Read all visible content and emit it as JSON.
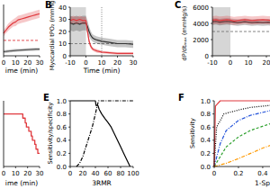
{
  "chart_data": [
    {
      "type": "line",
      "x": [
        0,
        2,
        4,
        6,
        8,
        10,
        12,
        15,
        18,
        21,
        24,
        27,
        30
      ],
      "series": [
        {
          "color": "#e0393e",
          "values": [
            22,
            25,
            28,
            30,
            32,
            33,
            35,
            36,
            37,
            38,
            39,
            40,
            41
          ],
          "errors": [
            3,
            3,
            3.5,
            3.5,
            3.5,
            4,
            4,
            4,
            4,
            4,
            4,
            4,
            4
          ]
        },
        {
          "color": "#555555",
          "values": [
            4,
            4.2,
            4.5,
            4.8,
            5,
            5.2,
            5.4,
            5.6,
            5.8,
            6,
            6.2,
            6.4,
            6.5
          ],
          "errors": [
            1.5,
            1.5,
            1.5,
            1.5,
            1.5,
            1.5,
            1.5,
            1.5,
            1.5,
            1.5,
            1.5,
            1.5,
            1.5
          ]
        }
      ],
      "xlim": [
        0,
        30
      ],
      "ylim": [
        0,
        50
      ],
      "xticks": [
        0,
        10,
        20,
        30
      ],
      "xlabel": "ime (min)",
      "hline": 15,
      "color": "#e0393e",
      "tick_labels": "x"
    },
    {
      "type": "line",
      "title": "B",
      "x": [
        -10,
        -8,
        -6,
        -4,
        -2,
        0,
        1,
        2,
        3,
        4,
        5,
        7,
        10,
        15,
        20,
        25,
        30
      ],
      "series": [
        {
          "color": "#333333",
          "values": [
            27,
            26,
            27,
            26,
            27,
            27,
            24,
            20,
            17,
            15,
            14,
            13,
            12,
            11,
            10,
            10,
            9.5
          ],
          "errors": [
            6,
            6,
            6,
            6,
            6,
            6,
            5,
            4,
            3.5,
            3,
            3,
            3,
            3,
            3,
            3,
            3,
            3
          ]
        },
        {
          "color": "#e0393e",
          "values": [
            29,
            30,
            29,
            30,
            29,
            29,
            20,
            12,
            8,
            6,
            5,
            4,
            3,
            2.5,
            2,
            2,
            2
          ],
          "errors": [
            3,
            3,
            3,
            3,
            3,
            3,
            3,
            2.5,
            2,
            1.5,
            1.5,
            1.5,
            1,
            1,
            1,
            1,
            1
          ]
        }
      ],
      "xlim": [
        -10,
        30
      ],
      "ylim": [
        0,
        40
      ],
      "xticks": [
        -10,
        0,
        10,
        20,
        30
      ],
      "yticks": [
        0,
        10,
        20,
        30,
        40
      ],
      "xlabel": "Time (min)",
      "ylabel": "Myocardial tPO₂ (mmHg)",
      "shade": [
        -10,
        0
      ],
      "hline": 10,
      "vline": 10
    },
    {
      "type": "line",
      "title": "C",
      "x": [
        -10,
        -8,
        -6,
        -4,
        -2,
        0,
        2,
        4,
        6,
        8,
        10,
        12,
        15,
        18,
        21,
        24,
        27,
        30
      ],
      "series": [
        {
          "color": "#333333",
          "values": [
            4200,
            4250,
            4150,
            4200,
            4250,
            4200,
            4150,
            4100,
            4150,
            4200,
            4150,
            4100,
            4150,
            4100,
            4150,
            4100,
            4100,
            4050
          ],
          "errors": [
            400,
            400,
            400,
            400,
            400,
            400,
            400,
            400,
            400,
            400,
            400,
            400,
            400,
            400,
            400,
            400,
            400,
            400
          ]
        },
        {
          "color": "#e0393e",
          "values": [
            4400,
            4450,
            4350,
            4400,
            4450,
            4400,
            4300,
            4350,
            4400,
            4450,
            4400,
            4350,
            4400,
            4450,
            4400,
            4350,
            4400,
            4350
          ],
          "errors": [
            500,
            500,
            500,
            500,
            500,
            500,
            500,
            500,
            500,
            500,
            500,
            500,
            500,
            500,
            500,
            500,
            500,
            500
          ]
        }
      ],
      "xlim": [
        -10,
        22
      ],
      "ylim": [
        0,
        6000
      ],
      "xticks": [
        -10,
        0,
        10,
        20
      ],
      "yticks": [
        0,
        2000,
        4000,
        6000
      ],
      "ylabel": "dP/dtₘₐₓ (mmHg/s)",
      "shade": [
        -10,
        0
      ],
      "hline": 3000
    },
    {
      "type": "step",
      "x": [
        0,
        16,
        18,
        19,
        21,
        23,
        24,
        26,
        27,
        28.5,
        30
      ],
      "series": [
        {
          "color": "#e0393e",
          "values": [
            1,
            0.92,
            0.83,
            0.75,
            0.67,
            0.58,
            0.5,
            0.42,
            0.33,
            0.25,
            0.25
          ]
        }
      ],
      "xlim": [
        0,
        30
      ],
      "ylim": [
        0,
        1.25
      ],
      "xticks": [
        0,
        10,
        20,
        30
      ],
      "xlabel": "ime (min)",
      "tick_labels": "x"
    },
    {
      "type": "line",
      "title": "E",
      "series": [
        {
          "color": "#000000",
          "line_style": "solid",
          "x": [
            0,
            40,
            41,
            44,
            46,
            50,
            55,
            60,
            65,
            70,
            75,
            80,
            85,
            90,
            95
          ],
          "values": [
            1,
            1,
            0.93,
            0.93,
            0.87,
            0.8,
            0.73,
            0.67,
            0.6,
            0.5,
            0.4,
            0.3,
            0.2,
            0.1,
            0
          ]
        },
        {
          "color": "#000000",
          "line_style": "dashdot",
          "x": [
            10,
            15,
            20,
            25,
            30,
            35,
            40,
            43,
            45,
            100
          ],
          "values": [
            0,
            0.05,
            0.15,
            0.3,
            0.45,
            0.6,
            0.8,
            0.93,
            1,
            1
          ]
        }
      ],
      "xlim": [
        0,
        100
      ],
      "ylim": [
        0,
        1
      ],
      "xticks": [
        0,
        20,
        40,
        60,
        80,
        100
      ],
      "yticks": [
        {
          "value": 0,
          "label": "0.0"
        },
        0.2,
        0.4,
        0.6,
        0.8,
        {
          "value": 1,
          "label": "1.0"
        }
      ],
      "xlabel": "3RMR",
      "ylabel": "Sensitivity/specificity"
    },
    {
      "type": "line",
      "title": "F",
      "series": [
        {
          "color": "#000000",
          "line_style": "dotted",
          "x": [
            0,
            0.02,
            0.08,
            0.2,
            0.3,
            0.46
          ],
          "values": [
            0,
            0.6,
            0.8,
            0.86,
            0.9,
            0.93
          ]
        },
        {
          "color": "#1f4fd8",
          "line_style": "dashdot",
          "x": [
            0,
            0.05,
            0.1,
            0.2,
            0.3,
            0.46
          ],
          "values": [
            0,
            0.35,
            0.55,
            0.7,
            0.78,
            0.85
          ]
        },
        {
          "color": "#2ca02c",
          "line_style": "dashed",
          "x": [
            0,
            0.05,
            0.1,
            0.2,
            0.3,
            0.46
          ],
          "values": [
            0,
            0.15,
            0.3,
            0.45,
            0.55,
            0.65
          ]
        },
        {
          "color": "#ff9900",
          "line_style": "dashdot",
          "x": [
            0,
            0.1,
            0.2,
            0.3,
            0.4,
            0.46
          ],
          "values": [
            0,
            0.05,
            0.12,
            0.2,
            0.28,
            0.32
          ]
        },
        {
          "color": "#e0393e",
          "line_style": "solid",
          "x": [
            0,
            0.01,
            0.05,
            0.46
          ],
          "values": [
            0,
            0.92,
            1,
            1
          ]
        }
      ],
      "xlim": [
        0,
        0.46
      ],
      "ylim": [
        0,
        1
      ],
      "xticks": [
        0,
        0.2,
        0.4
      ],
      "yticks": [
        {
          "value": 0,
          "label": "0.0"
        },
        0.2,
        0.4,
        0.6,
        0.8,
        {
          "value": 1,
          "label": "1.0"
        }
      ],
      "xlabel": "1-Sp",
      "ylabel": "Sensitivity"
    }
  ]
}
